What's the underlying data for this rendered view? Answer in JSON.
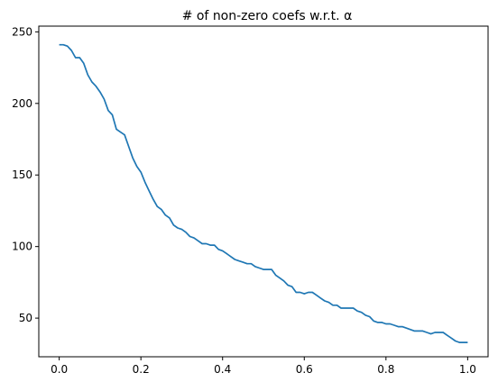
{
  "chart_data": {
    "type": "line",
    "title": "# of non-zero coefs w.r.t. α",
    "xlabel": "",
    "ylabel": "",
    "xlim": [
      -0.05,
      1.05
    ],
    "ylim": [
      23,
      254
    ],
    "xticks": [
      0.0,
      0.2,
      0.4,
      0.6,
      0.8,
      1.0
    ],
    "xtick_labels": [
      "0.0",
      "0.2",
      "0.4",
      "0.6",
      "0.8",
      "1.0"
    ],
    "yticks": [
      50,
      100,
      150,
      200,
      250
    ],
    "ytick_labels": [
      "50",
      "100",
      "150",
      "200",
      "250"
    ],
    "grid": false,
    "series": [
      {
        "color": "#1f77b4",
        "x": [
          0.0,
          0.01,
          0.02,
          0.03,
          0.04,
          0.05,
          0.06,
          0.07,
          0.08,
          0.09,
          0.1,
          0.11,
          0.12,
          0.13,
          0.14,
          0.15,
          0.16,
          0.17,
          0.18,
          0.19,
          0.2,
          0.21,
          0.22,
          0.23,
          0.24,
          0.25,
          0.26,
          0.27,
          0.28,
          0.29,
          0.3,
          0.31,
          0.32,
          0.33,
          0.34,
          0.35,
          0.36,
          0.37,
          0.38,
          0.39,
          0.4,
          0.41,
          0.42,
          0.43,
          0.44,
          0.45,
          0.46,
          0.47,
          0.48,
          0.49,
          0.5,
          0.51,
          0.52,
          0.53,
          0.54,
          0.55,
          0.56,
          0.57,
          0.58,
          0.59,
          0.6,
          0.61,
          0.62,
          0.63,
          0.64,
          0.65,
          0.66,
          0.67,
          0.68,
          0.69,
          0.7,
          0.71,
          0.72,
          0.73,
          0.74,
          0.75,
          0.76,
          0.77,
          0.78,
          0.79,
          0.8,
          0.81,
          0.82,
          0.83,
          0.84,
          0.85,
          0.86,
          0.87,
          0.88,
          0.89,
          0.9,
          0.91,
          0.92,
          0.93,
          0.94,
          0.95,
          0.96,
          0.97,
          0.98,
          0.99,
          1.0
        ],
        "y": [
          241,
          241,
          240,
          237,
          232,
          232,
          228,
          220,
          215,
          212,
          208,
          203,
          195,
          192,
          182,
          180,
          178,
          170,
          162,
          156,
          152,
          145,
          139,
          133,
          128,
          126,
          122,
          120,
          115,
          113,
          112,
          110,
          107,
          106,
          104,
          102,
          102,
          101,
          101,
          98,
          97,
          95,
          93,
          91,
          90,
          89,
          88,
          88,
          86,
          85,
          84,
          84,
          84,
          80,
          78,
          76,
          73,
          72,
          68,
          68,
          67,
          68,
          68,
          66,
          64,
          62,
          61,
          59,
          59,
          57,
          57,
          57,
          57,
          55,
          54,
          52,
          51,
          48,
          47,
          47,
          46,
          46,
          45,
          44,
          44,
          43,
          42,
          41,
          41,
          41,
          40,
          39,
          40,
          40,
          40,
          38,
          36,
          34,
          33,
          33,
          33
        ]
      }
    ]
  }
}
